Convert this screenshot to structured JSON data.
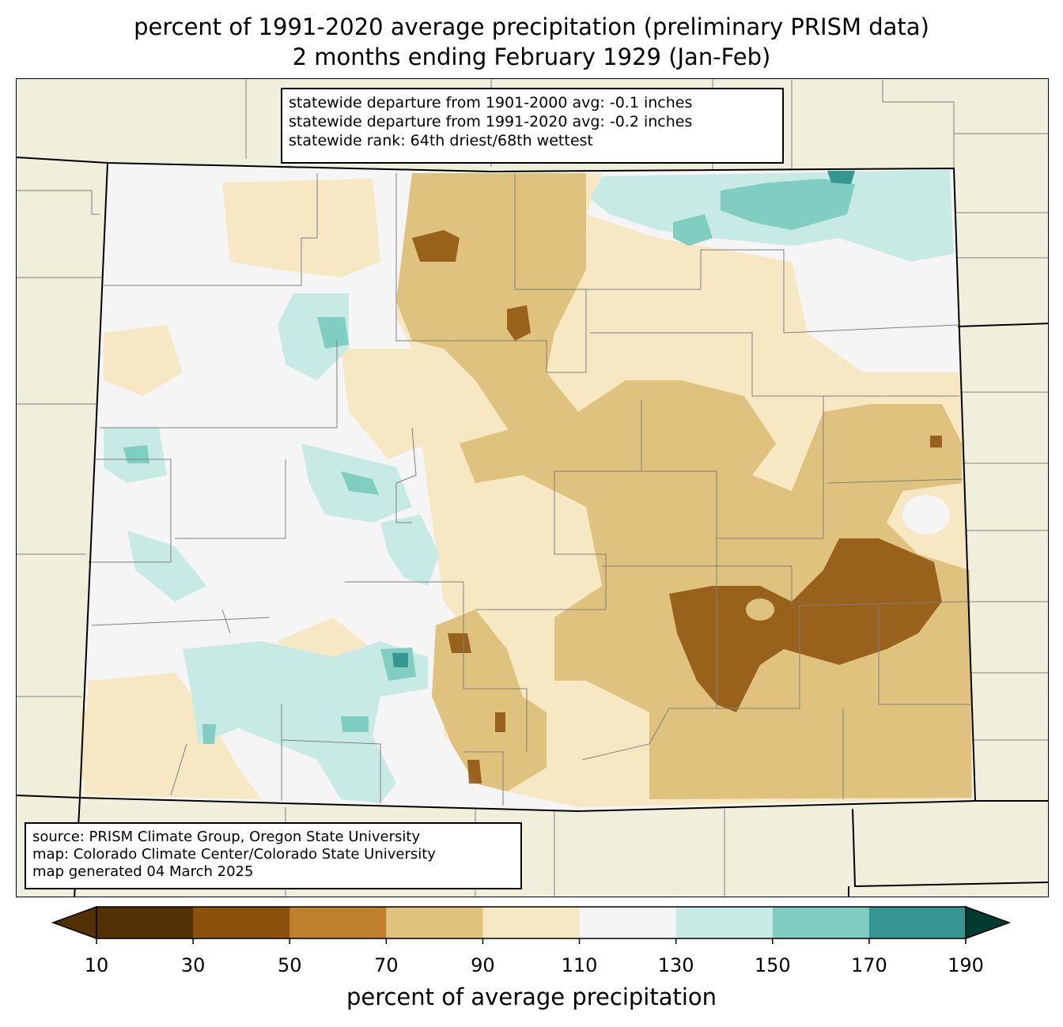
{
  "title": {
    "line1": "percent of 1991-2020 average precipitation (preliminary PRISM data)",
    "line2": "2 months ending February 1929 (Jan-Feb)"
  },
  "stats": [
    "statewide departure from 1901-2000 avg: -0.1 inches",
    "statewide departure from 1991-2020 avg: -0.2 inches",
    "statewide rank: 64th driest/68th wettest"
  ],
  "source": [
    "source: PRISM Climate Group, Oregon State University",
    "map: Colorado Climate Center/Colorado State University",
    "map generated 04 March 2025"
  ],
  "colorbar": {
    "label": "percent of average precipitation",
    "ticks": [
      "10",
      "30",
      "50",
      "70",
      "90",
      "110",
      "130",
      "150",
      "170",
      "190"
    ],
    "colors": [
      "#543005",
      "#8c510a",
      "#bf812d",
      "#dfc27d",
      "#f6e8c3",
      "#f5f5f5",
      "#c7eae5",
      "#80cdc1",
      "#35978f",
      "#01665e",
      "#003c30"
    ],
    "under_color": "#543005",
    "over_color": "#003c30"
  },
  "map_colors": {
    "background": "#efefdc",
    "state_line": "#000000",
    "county_line": "#808080"
  }
}
